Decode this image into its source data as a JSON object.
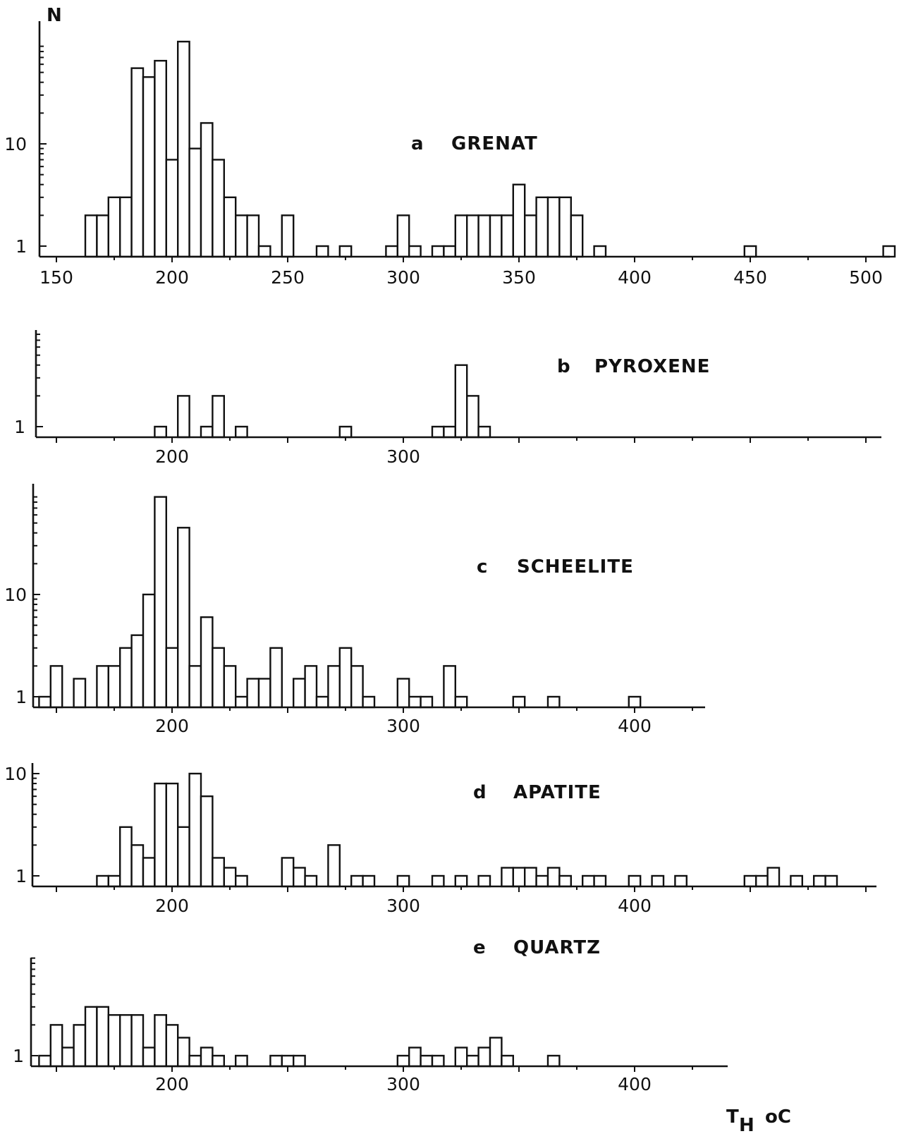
{
  "y_axis_label": "N",
  "x_axis_label": "T",
  "x_axis_label_sub": "H",
  "x_axis_unit": "oC",
  "chart_data": [
    {
      "type": "bar",
      "letter": "a",
      "mineral": "GRENAT",
      "bin_width": 5,
      "y_scale": "log",
      "x_ticks": [
        "150",
        "200",
        "250",
        "300",
        "350",
        "400",
        "450",
        "500"
      ],
      "y_ticks": [
        "1",
        "10"
      ],
      "x": [
        165,
        170,
        175,
        180,
        185,
        190,
        195,
        200,
        205,
        210,
        215,
        220,
        225,
        230,
        235,
        240,
        250,
        265,
        275,
        295,
        300,
        305,
        315,
        320,
        325,
        330,
        335,
        340,
        345,
        350,
        355,
        360,
        365,
        370,
        375,
        385,
        450,
        510
      ],
      "values": [
        2,
        2,
        3,
        3,
        55,
        45,
        65,
        7,
        100,
        9,
        16,
        7,
        3,
        2,
        2,
        1,
        2,
        1,
        1,
        1,
        2,
        1,
        1,
        1,
        2,
        2,
        2,
        2,
        2,
        4,
        2,
        3,
        3,
        3,
        2,
        1,
        1,
        1
      ]
    },
    {
      "type": "bar",
      "letter": "b",
      "mineral": "PYROXENE",
      "bin_width": 5,
      "y_scale": "log",
      "x_ticks": [
        "200",
        "300"
      ],
      "y_ticks": [
        "1"
      ],
      "x": [
        195,
        205,
        215,
        220,
        230,
        275,
        315,
        320,
        325,
        330,
        335
      ],
      "values": [
        1,
        2,
        1,
        2,
        1,
        1,
        1,
        1,
        4,
        2,
        1
      ]
    },
    {
      "type": "bar",
      "letter": "c",
      "mineral": "SCHEELITE",
      "bin_width": 5,
      "y_scale": "log",
      "x_ticks": [
        "200",
        "300",
        "400"
      ],
      "y_ticks": [
        "1",
        "10"
      ],
      "x": [
        145,
        150,
        160,
        170,
        175,
        180,
        185,
        190,
        195,
        200,
        205,
        210,
        215,
        220,
        225,
        230,
        235,
        240,
        245,
        255,
        260,
        265,
        270,
        275,
        280,
        285,
        300,
        305,
        310,
        320,
        325,
        350,
        365,
        400
      ],
      "values": [
        1,
        2,
        1.5,
        2,
        2,
        3,
        4,
        10,
        90,
        3,
        45,
        2,
        6,
        3,
        2,
        1,
        1.5,
        1.5,
        3,
        1.5,
        2,
        1,
        2,
        3,
        2,
        1,
        1.5,
        1,
        1,
        2,
        1,
        1,
        1,
        1
      ]
    },
    {
      "type": "bar",
      "letter": "d",
      "mineral": "APATITE",
      "bin_width": 5,
      "y_scale": "log",
      "x_ticks": [
        "200",
        "300",
        "400"
      ],
      "y_ticks": [
        "1",
        "10"
      ],
      "x": [
        170,
        175,
        180,
        185,
        190,
        195,
        200,
        205,
        210,
        215,
        220,
        225,
        230,
        250,
        255,
        260,
        270,
        280,
        285,
        300,
        315,
        325,
        335,
        345,
        350,
        355,
        360,
        365,
        370,
        380,
        385,
        400,
        410,
        420,
        450,
        455,
        460,
        470,
        480,
        485
      ],
      "values": [
        1,
        1,
        3,
        2,
        1.5,
        8,
        8,
        3,
        10,
        6,
        1.5,
        1.2,
        1,
        1.5,
        1.2,
        1,
        2,
        1,
        1,
        1,
        1,
        1,
        1,
        1.2,
        1.2,
        1.2,
        1,
        1.2,
        1,
        1,
        1,
        1,
        1,
        1,
        1,
        1,
        1.2,
        1,
        1,
        1
      ]
    },
    {
      "type": "bar",
      "letter": "e",
      "mineral": "QUARTZ",
      "bin_width": 5,
      "y_scale": "log",
      "x_ticks": [
        "200",
        "300",
        "400"
      ],
      "y_ticks": [
        "1"
      ],
      "x": [
        145,
        150,
        155,
        160,
        165,
        170,
        175,
        180,
        185,
        190,
        195,
        200,
        205,
        210,
        215,
        220,
        230,
        245,
        250,
        255,
        300,
        305,
        310,
        315,
        325,
        330,
        335,
        340,
        345,
        365
      ],
      "values": [
        1,
        2,
        1.2,
        2,
        3,
        3,
        2.5,
        2.5,
        2.5,
        1.2,
        2.5,
        2,
        1.5,
        1,
        1.2,
        1,
        1,
        1,
        1,
        1,
        1,
        1.2,
        1,
        1,
        1.2,
        1,
        1.2,
        1.5,
        1,
        1
      ]
    }
  ]
}
